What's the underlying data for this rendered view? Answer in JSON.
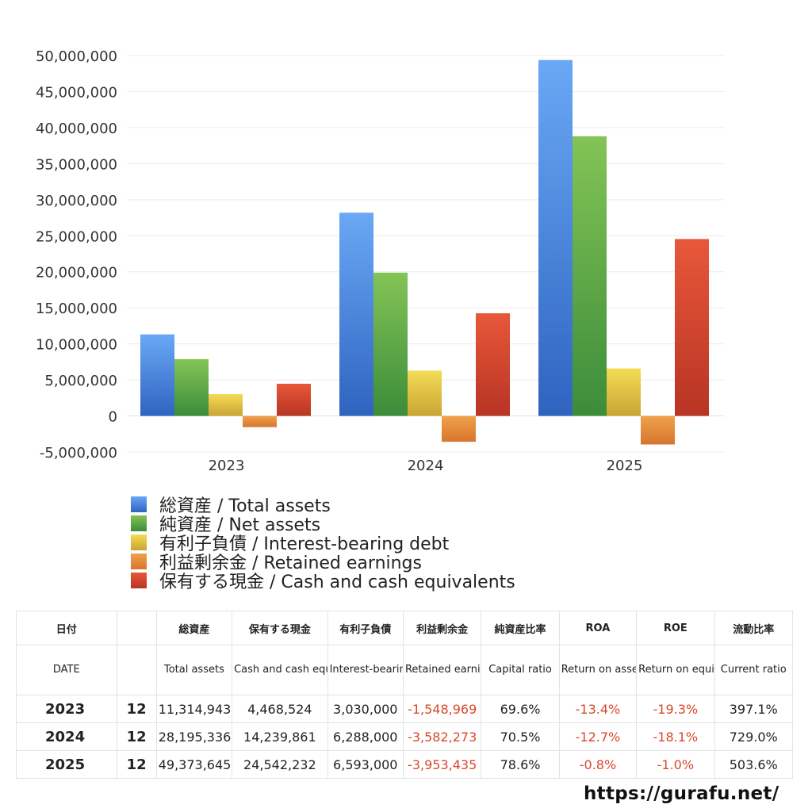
{
  "chart_data": {
    "type": "bar",
    "categories": [
      "2023",
      "2024",
      "2025"
    ],
    "ylim": [
      -5000000,
      50000000
    ],
    "yticks": [
      -5000000,
      0,
      5000000,
      10000000,
      15000000,
      20000000,
      25000000,
      30000000,
      35000000,
      40000000,
      45000000,
      50000000
    ],
    "ytick_labels": [
      "-5,000,000",
      "0",
      "5,000,000",
      "10,000,000",
      "15,000,000",
      "20,000,000",
      "25,000,000",
      "30,000,000",
      "35,000,000",
      "40,000,000",
      "45,000,000",
      "50,000,000"
    ],
    "series": [
      {
        "name": "総資産 / Total assets",
        "values": [
          11314943,
          28195336,
          49373645
        ],
        "color_top": "#6aa8f5",
        "color_bottom": "#2f63c0"
      },
      {
        "name": "純資産 / Net assets",
        "values": [
          7878000,
          19880000,
          38800000
        ],
        "color_top": "#84c456",
        "color_bottom": "#3b8c3a"
      },
      {
        "name": "有利子負債 / Interest-bearing debt",
        "values": [
          3030000,
          6288000,
          6593000
        ],
        "color_top": "#f4dc56",
        "color_bottom": "#c9a432"
      },
      {
        "name": "利益剰余金 / Retained earnings",
        "values": [
          -1548969,
          -3582273,
          -3953435
        ],
        "color_top": "#f0a24a",
        "color_bottom": "#d7752e"
      },
      {
        "name": "保有する現金 /  Cash and cash equivalents",
        "values": [
          4468524,
          14239861,
          24542232
        ],
        "color_top": "#e8573a",
        "color_bottom": "#b83424"
      }
    ],
    "legend_position": "bottom-left",
    "grid": true
  },
  "table": {
    "headers_jp": [
      "日付",
      "",
      "総資産",
      "保有する現金",
      "有利子負債",
      "利益剰余金",
      "純資産比率",
      "ROA",
      "ROE",
      "流動比率"
    ],
    "headers_en": [
      "DATE",
      "",
      "Total assets",
      "Cash and cash equivalents",
      "Interest-bearing debt",
      "Retained earnings",
      "Capital ratio",
      "Return on assets",
      "Return on equity",
      "Current ratio"
    ],
    "rows": [
      {
        "year": "2023",
        "month": "12",
        "total_assets": "11,314,943",
        "cash": "4,468,524",
        "debt": "3,030,000",
        "retained": "-1,548,969",
        "capital_ratio": "69.6%",
        "roa": "-13.4%",
        "roe": "-19.3%",
        "current_ratio": "397.1%"
      },
      {
        "year": "2024",
        "month": "12",
        "total_assets": "28,195,336",
        "cash": "14,239,861",
        "debt": "6,288,000",
        "retained": "-3,582,273",
        "capital_ratio": "70.5%",
        "roa": "-12.7%",
        "roe": "-18.1%",
        "current_ratio": "729.0%"
      },
      {
        "year": "2025",
        "month": "12",
        "total_assets": "49,373,645",
        "cash": "24,542,232",
        "debt": "6,593,000",
        "retained": "-3,953,435",
        "capital_ratio": "78.6%",
        "roa": "-0.8%",
        "roe": "-1.0%",
        "current_ratio": "503.6%"
      }
    ]
  },
  "footer": {
    "url": "https://gurafu.net/"
  }
}
